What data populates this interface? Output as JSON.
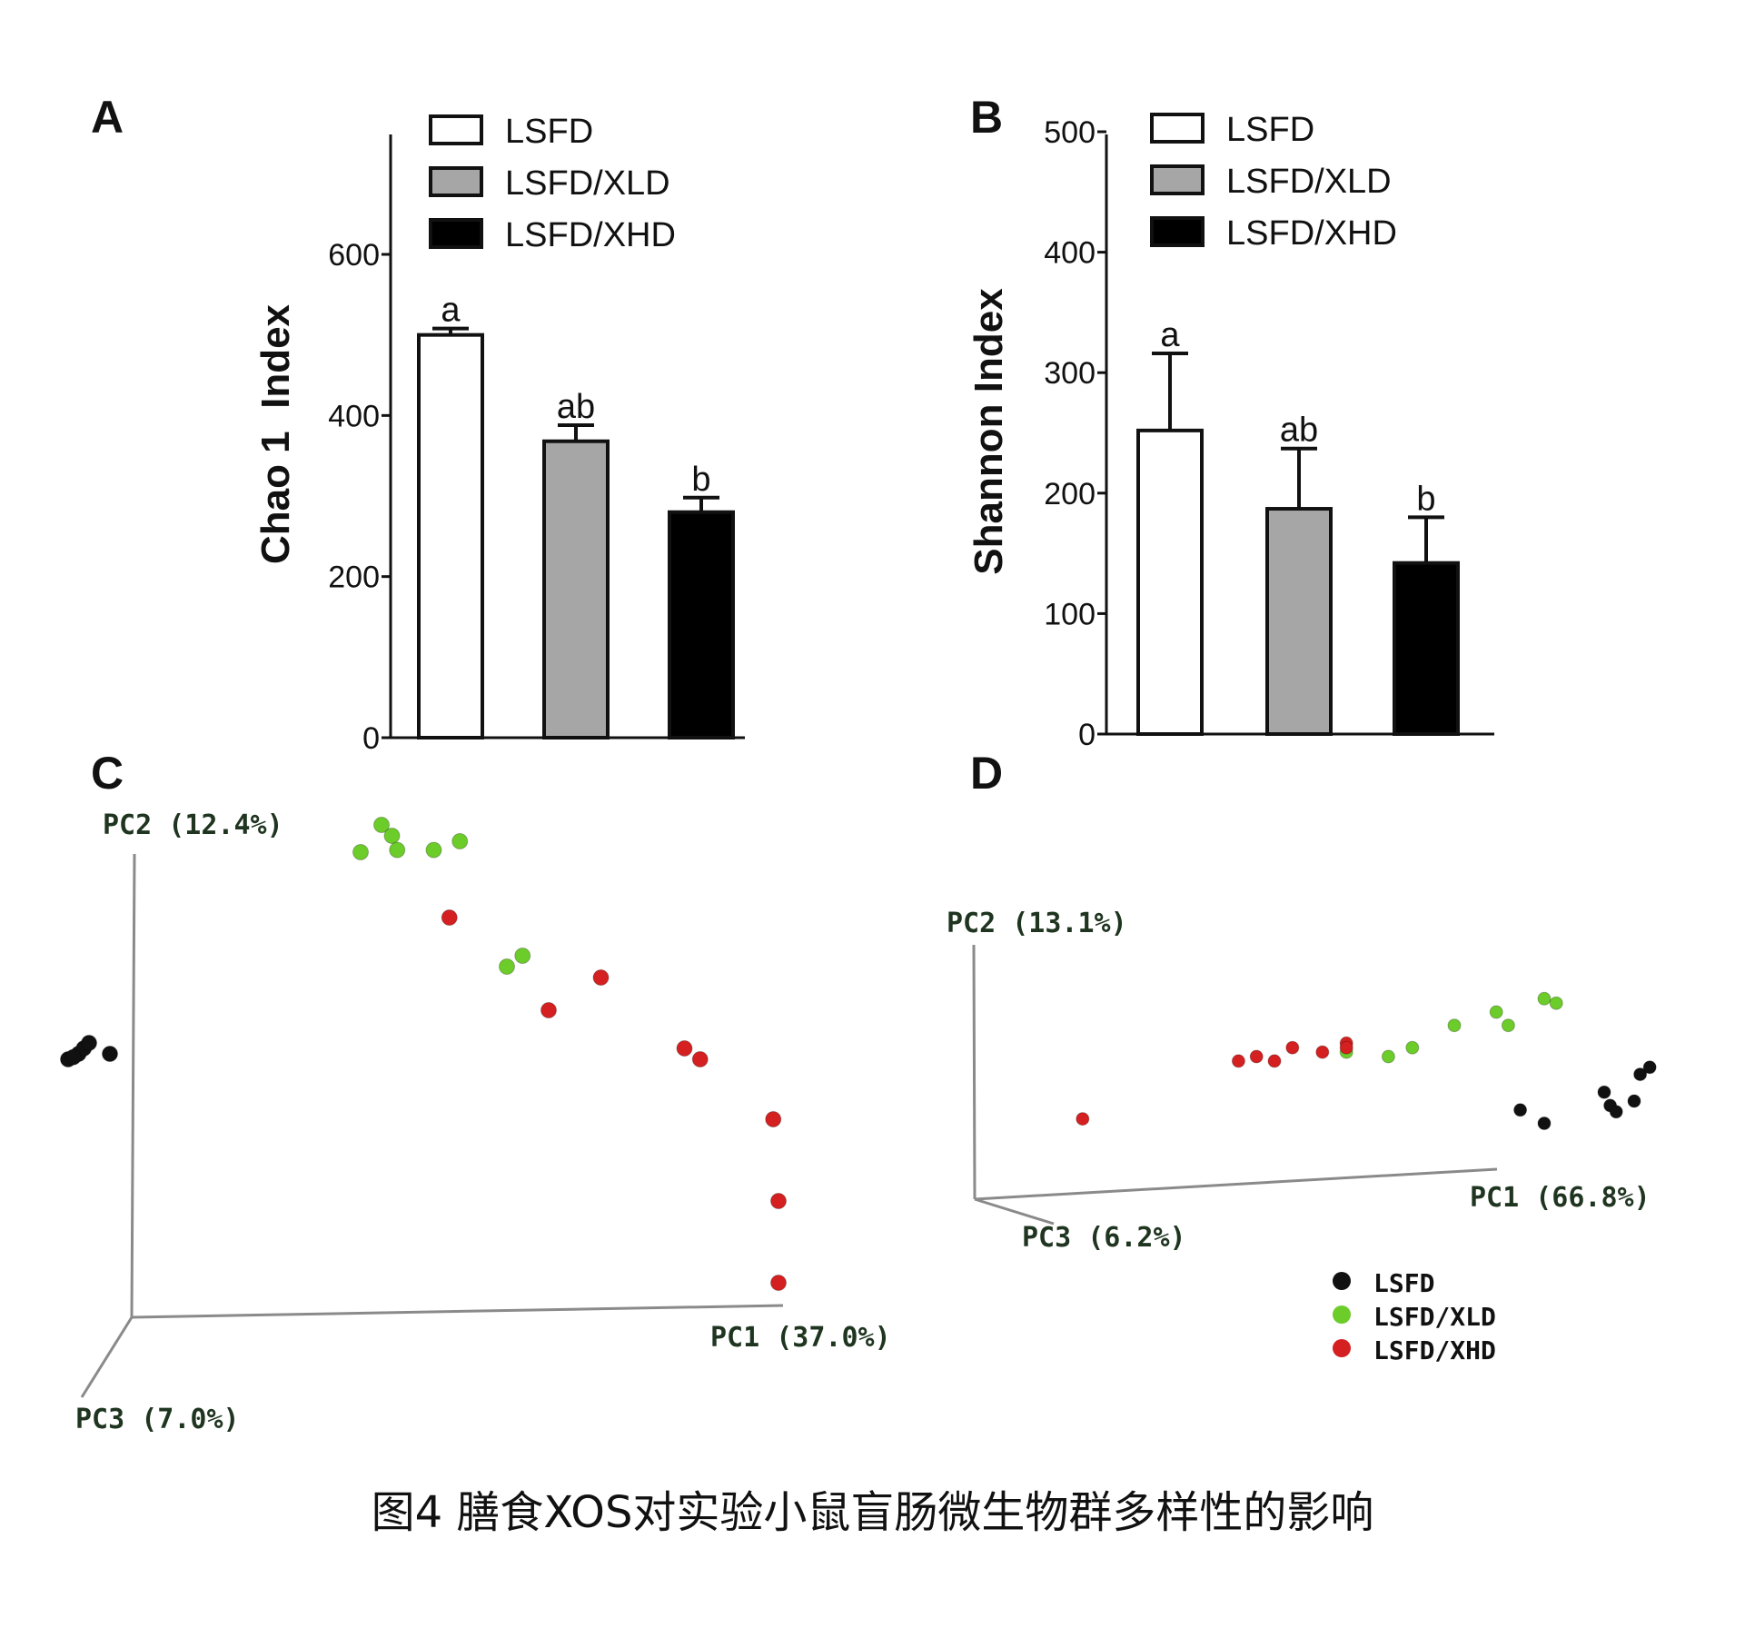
{
  "figure": {
    "caption": "图4 膳食XOS对实验小鼠盲肠微生物群多样性的影响",
    "panels": [
      "A",
      "B",
      "C",
      "D"
    ]
  },
  "colors": {
    "lsfd_fill": "#ffffff",
    "xld_fill": "#a6a6a6",
    "xhd_fill": "#000000",
    "pcoa_lsfd": "#111111",
    "pcoa_xld": "#6ccc2a",
    "pcoa_xhd": "#d42020",
    "axis": "#111111",
    "pcoa_axis": "#8a8a8a",
    "pcoa_label": "#1f3520"
  },
  "chart_data": [
    {
      "panel": "A",
      "type": "bar",
      "ylabel": "Chao 1  Index",
      "ylim": [
        0,
        750
      ],
      "yticks": [
        "0",
        "200",
        "400",
        "600"
      ],
      "categories": [
        "LSFD",
        "LSFD/XLD",
        "LSFD/XHD"
      ],
      "values": [
        500,
        368,
        280
      ],
      "errors": [
        8,
        20,
        18
      ],
      "sig_labels": [
        "a",
        "ab",
        "b"
      ],
      "legend": [
        "LSFD",
        "LSFD/XLD",
        "LSFD/XHD"
      ],
      "legend_position": "top-right"
    },
    {
      "panel": "B",
      "type": "bar",
      "ylabel": "Shannon Index",
      "ylim": [
        0,
        500
      ],
      "yticks": [
        "0",
        "100",
        "200",
        "300",
        "400",
        "500"
      ],
      "categories": [
        "LSFD",
        "LSFD/XLD",
        "LSFD/XHD"
      ],
      "values": [
        252,
        187,
        142
      ],
      "errors": [
        64,
        50,
        38
      ],
      "sig_labels": [
        "a",
        "ab",
        "b"
      ],
      "legend": [
        "LSFD",
        "LSFD/XLD",
        "LSFD/XHD"
      ],
      "legend_position": "top-right"
    },
    {
      "panel": "C",
      "type": "scatter",
      "axis_labels": [
        "PC1 (37.0%)",
        "PC2 (12.4%)",
        "PC3 (7.0%)"
      ],
      "series": [
        {
          "name": "LSFD",
          "points": [
            [
              -3.0,
              0.2
            ],
            [
              -2.9,
              0.25
            ],
            [
              -2.85,
              0.3
            ],
            [
              -2.8,
              0.35
            ],
            [
              -2.6,
              0.25
            ],
            [
              -2.95,
              0.22
            ]
          ]
        },
        {
          "name": "LSFD/XLD",
          "points": [
            [
              -0.2,
              2.1
            ],
            [
              0.0,
              2.35
            ],
            [
              0.1,
              2.25
            ],
            [
              0.15,
              2.12
            ],
            [
              0.5,
              2.12
            ],
            [
              0.75,
              2.2
            ],
            [
              1.2,
              1.05
            ],
            [
              1.35,
              1.15
            ]
          ]
        },
        {
          "name": "LSFD/XHD",
          "points": [
            [
              0.65,
              1.5
            ],
            [
              1.6,
              0.65
            ],
            [
              2.1,
              0.95
            ],
            [
              2.9,
              0.3
            ],
            [
              3.05,
              0.2
            ],
            [
              3.75,
              -0.35
            ],
            [
              3.8,
              -1.1
            ],
            [
              3.8,
              -1.85
            ]
          ]
        }
      ]
    },
    {
      "panel": "D",
      "type": "scatter",
      "axis_labels": [
        "PC1 (66.8%)",
        "PC2 (13.1%)",
        "PC3 (6.2%)"
      ],
      "legend": [
        "LSFD",
        "LSFD/XLD",
        "LSFD/XHD"
      ],
      "legend_position": "bottom-right",
      "series": [
        {
          "name": "LSFD",
          "points": [
            [
              3.3,
              -0.1
            ],
            [
              3.5,
              -0.25
            ],
            [
              4.0,
              0.1
            ],
            [
              4.05,
              -0.05
            ],
            [
              4.1,
              -0.12
            ],
            [
              4.25,
              0.0
            ],
            [
              4.3,
              0.3
            ],
            [
              4.38,
              0.38
            ]
          ]
        },
        {
          "name": "LSFD/XLD",
          "points": [
            [
              1.85,
              0.55
            ],
            [
              2.2,
              0.5
            ],
            [
              2.4,
              0.6
            ],
            [
              2.75,
              0.85
            ],
            [
              3.1,
              1.0
            ],
            [
              3.2,
              0.85
            ],
            [
              3.5,
              1.15
            ],
            [
              3.6,
              1.1
            ]
          ]
        },
        {
          "name": "LSFD/XHD",
          "points": [
            [
              -0.35,
              -0.2
            ],
            [
              0.95,
              0.45
            ],
            [
              1.1,
              0.5
            ],
            [
              1.25,
              0.45
            ],
            [
              1.4,
              0.6
            ],
            [
              1.65,
              0.55
            ],
            [
              1.85,
              0.65
            ],
            [
              1.85,
              0.6
            ]
          ]
        }
      ]
    }
  ]
}
